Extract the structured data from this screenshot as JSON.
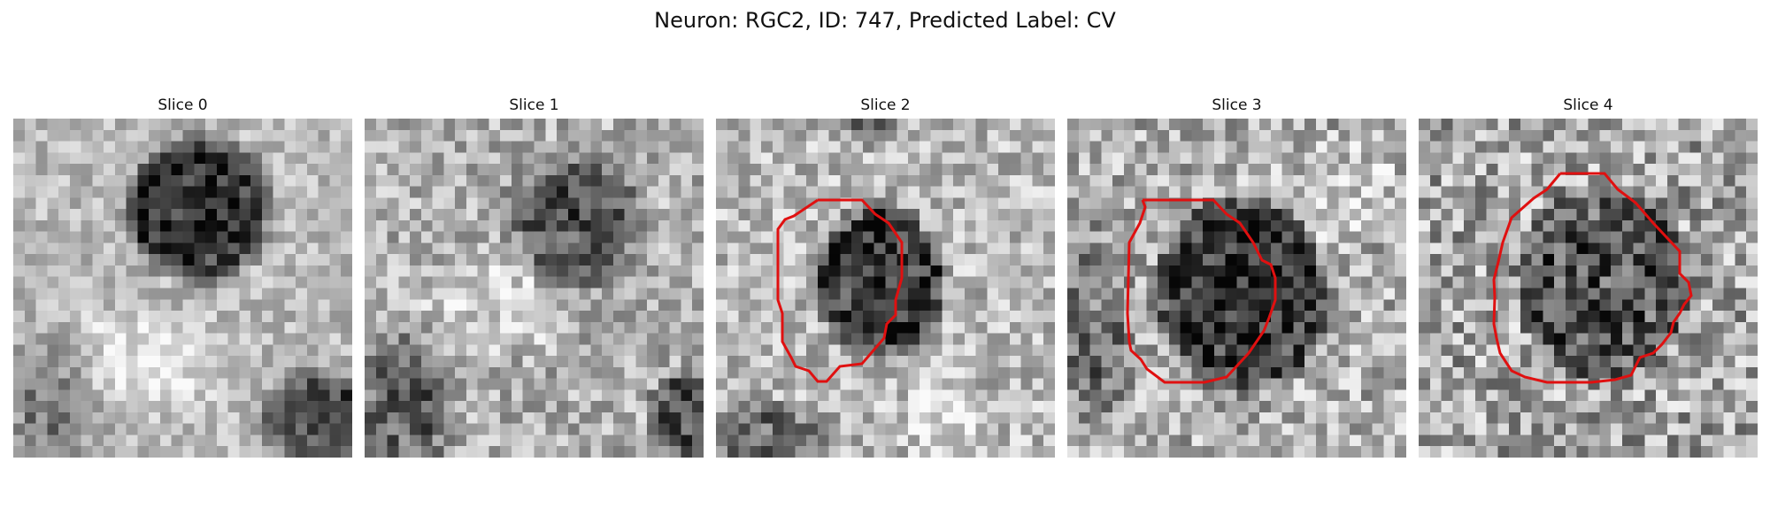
{
  "figure": {
    "title": "Neuron: RGC2, ID: 747, Predicted Label: CV"
  },
  "panels": [
    {
      "title": "Slice 0",
      "has_contour": false,
      "contour_color": "#e01010"
    },
    {
      "title": "Slice 1",
      "has_contour": false,
      "contour_color": "#e01010"
    },
    {
      "title": "Slice 2",
      "has_contour": true,
      "contour_color": "#e01010"
    },
    {
      "title": "Slice 3",
      "has_contour": true,
      "contour_color": "#e01010"
    },
    {
      "title": "Slice 4",
      "has_contour": true,
      "contour_color": "#e01010"
    }
  ]
}
